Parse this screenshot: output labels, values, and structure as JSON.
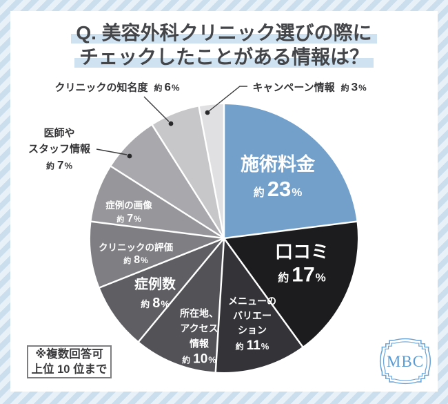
{
  "title": {
    "line1": "Q. 美容外科クリニック選びの際に",
    "line2": "チェックしたことがある情報は？"
  },
  "note": {
    "line1": "※複数回答可",
    "line2": "上位 10 位まで"
  },
  "logo": {
    "text": "MBC"
  },
  "colors": {
    "accent_blue": "#72a0cb",
    "title_highlight": "#cfe2f1",
    "card_bg": "#ffffff",
    "stripe_dark": "#cbdeee",
    "stripe_light": "#e9f1f8",
    "inside_label_text": "#ffffff",
    "outside_label_text": "#333336",
    "separator": "#ffffff",
    "logo_blue": "#5b9cd4"
  },
  "chart_data": {
    "type": "pie",
    "title": "Q. 美容外科クリニック選びの際にチェックしたことがある情報は？",
    "approx_prefix": "約",
    "unit": "%",
    "start_angle_deg": 0,
    "direction": "clockwise",
    "total": 100,
    "legend_position": "labels-on-slices",
    "slices": [
      {
        "label": "施術料金",
        "label_lines": [
          "施術料金"
        ],
        "value": 23,
        "color": "#72a0cb",
        "placement": "inside"
      },
      {
        "label": "口コミ",
        "label_lines": [
          "口コミ"
        ],
        "value": 17,
        "color": "#1c1c1e",
        "placement": "inside"
      },
      {
        "label": "メニューのバリエーション",
        "label_lines": [
          "メニューの",
          "バリエー",
          "ション"
        ],
        "value": 11,
        "color": "#333338",
        "placement": "inside"
      },
      {
        "label": "所在地、アクセス情報",
        "label_lines": [
          "所在地、",
          "アクセス",
          "情報"
        ],
        "value": 10,
        "color": "#525257",
        "placement": "inside"
      },
      {
        "label": "症例数",
        "label_lines": [
          "症例数"
        ],
        "value": 8,
        "color": "#5e5e63",
        "placement": "inside"
      },
      {
        "label": "クリニックの評価",
        "label_lines": [
          "クリニックの評価"
        ],
        "value": 8,
        "color": "#7e7e83",
        "placement": "inside"
      },
      {
        "label": "症例の画像",
        "label_lines": [
          "症例の画像"
        ],
        "value": 7,
        "color": "#97979b",
        "placement": "inside"
      },
      {
        "label": "医師やスタッフ情報",
        "label_lines": [
          "医師や",
          "スタッフ情報"
        ],
        "value": 7,
        "color": "#a9a9ad",
        "placement": "outside"
      },
      {
        "label": "クリニックの知名度",
        "label_lines": [
          "クリニックの知名度"
        ],
        "value": 6,
        "color": "#c7c7ca",
        "placement": "outside"
      },
      {
        "label": "キャンペーン情報",
        "label_lines": [
          "キャンペーン情報"
        ],
        "value": 3,
        "color": "#e0e0e2",
        "placement": "outside"
      }
    ]
  }
}
